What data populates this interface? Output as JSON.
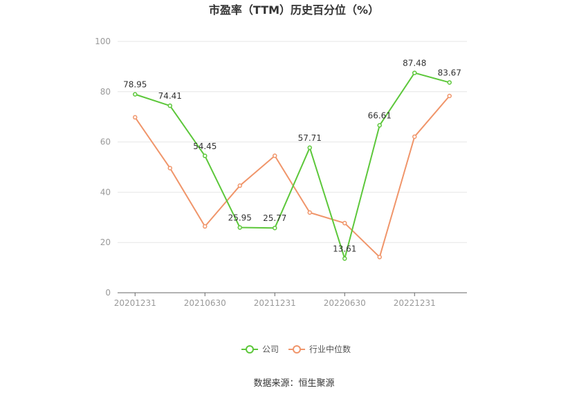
{
  "chart_data": {
    "type": "line",
    "title": "市盈率（TTM）历史百分位（%）",
    "ylim": [
      0,
      100
    ],
    "yticks": [
      0,
      20,
      40,
      60,
      80,
      100
    ],
    "x": [
      "20201231",
      "20210331",
      "20210630",
      "20210930",
      "20211231",
      "20220331",
      "20220630",
      "20220930",
      "20221231",
      "20230331"
    ],
    "xtick_labels": [
      {
        "index": 0,
        "label": "20201231"
      },
      {
        "index": 2,
        "label": "20210630"
      },
      {
        "index": 4,
        "label": "20211231"
      },
      {
        "index": 6,
        "label": "20220630"
      },
      {
        "index": 8,
        "label": "20221231"
      }
    ],
    "series": [
      {
        "name": "公司",
        "color": "#5cc73a",
        "show_labels": true,
        "values": [
          78.95,
          74.41,
          54.45,
          25.95,
          25.77,
          57.71,
          13.61,
          66.61,
          87.48,
          83.67
        ]
      },
      {
        "name": "行业中位数",
        "color": "#f0956a",
        "show_labels": false,
        "values": [
          69.8,
          49.6,
          26.4,
          42.6,
          54.5,
          31.9,
          27.7,
          14.2,
          62.1,
          78.3
        ]
      }
    ],
    "grid": true,
    "legend": "bottom-center"
  },
  "footer": {
    "source": "数据来源：恒生聚源"
  }
}
